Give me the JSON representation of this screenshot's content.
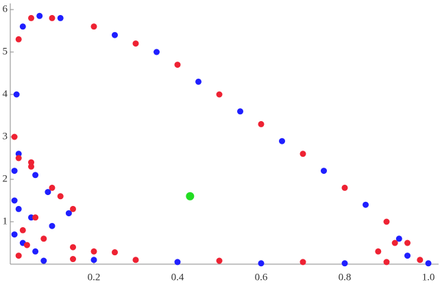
{
  "chart_data": {
    "type": "scatter",
    "series": [
      {
        "color": "#1f1fff",
        "x": [
          0.01,
          0.015,
          0.03,
          0.07,
          0.12,
          0.25,
          0.35,
          0.45,
          0.55,
          0.65,
          0.75,
          0.85,
          0.93,
          1.0,
          0.95,
          0.8,
          0.6,
          0.4,
          0.2,
          0.08,
          0.02,
          0.01,
          0.06,
          0.09,
          0.14,
          0.02,
          0.05,
          0.1,
          0.01,
          0.03,
          0.06
        ],
        "values": [
          1.5,
          4,
          5.6,
          5.85,
          5.8,
          5.4,
          5,
          4.3,
          3.6,
          2.9,
          2.2,
          1.4,
          0.6,
          0.02,
          0.2,
          0.02,
          0.02,
          0.05,
          0.1,
          0.08,
          2.6,
          2.2,
          2.1,
          1.7,
          1.2,
          1.3,
          1.1,
          0.9,
          0.7,
          0.5,
          0.3
        ]
      },
      {
        "color": "#ee2233",
        "x": [
          0.01,
          0.02,
          0.05,
          0.1,
          0.2,
          0.3,
          0.4,
          0.5,
          0.6,
          0.7,
          0.8,
          0.9,
          0.95,
          0.98,
          0.9,
          0.7,
          0.5,
          0.3,
          0.15,
          0.05,
          0.02,
          0.05,
          0.1,
          0.15,
          0.12,
          0.06,
          0.03,
          0.08,
          0.2,
          0.25,
          0.15,
          0.04,
          0.02,
          0.92,
          0.88
        ],
        "values": [
          3,
          5.3,
          5.8,
          5.8,
          5.6,
          5.2,
          4.7,
          4,
          3.3,
          2.6,
          1.8,
          1,
          0.5,
          0.1,
          0.05,
          0.05,
          0.08,
          0.1,
          0.12,
          2.4,
          2.5,
          2.3,
          1.8,
          1.3,
          1.6,
          1.1,
          0.8,
          0.6,
          0.3,
          0.28,
          0.4,
          0.45,
          0.2,
          0.5,
          0.3
        ]
      },
      {
        "color": "#22dd22",
        "x": [
          0.43
        ],
        "values": [
          1.6
        ]
      }
    ],
    "xlim": [
      0,
      1.0
    ],
    "xticks": [
      {
        "value": 0.2,
        "label": "0.2"
      },
      {
        "value": 0.4,
        "label": "0.4"
      },
      {
        "value": 0.6,
        "label": "0.6"
      },
      {
        "value": 0.8,
        "label": "0.8"
      },
      {
        "value": 1.0,
        "label": "1.0"
      }
    ],
    "ylim": [
      0,
      6
    ],
    "yticks": [
      1,
      2,
      3,
      4,
      5,
      6
    ]
  }
}
